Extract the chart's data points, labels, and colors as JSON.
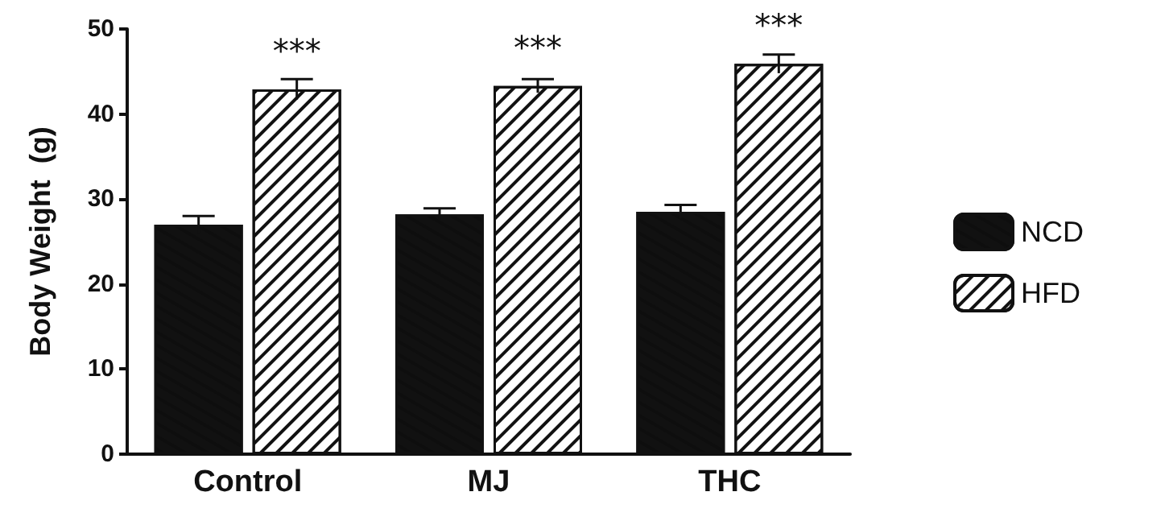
{
  "chart_data": {
    "type": "bar",
    "ylabel": "Body Weight  (g)",
    "categories": [
      "Control",
      "MJ",
      "THC"
    ],
    "series": [
      {
        "name": "NCD",
        "color": "#111111",
        "values": [
          27,
          28.2,
          28.5
        ],
        "errors": [
          1,
          0.7,
          0.8
        ]
      },
      {
        "name": "HFD",
        "color": "#ffffff",
        "values": [
          42.9,
          43.3,
          45.9
        ],
        "errors": [
          1.2,
          0.8,
          1.1
        ],
        "value_labels": [
          "***",
          "***",
          "***"
        ]
      }
    ],
    "ylim": [
      0,
      50
    ],
    "yticks": [
      0,
      10,
      20,
      30,
      40,
      50
    ],
    "grid": false,
    "legend": "right"
  }
}
